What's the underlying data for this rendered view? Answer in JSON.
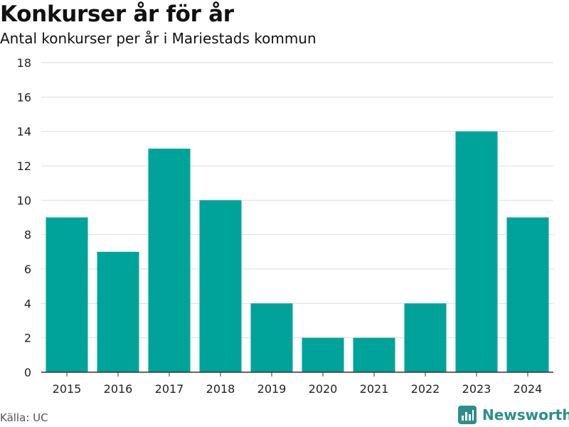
{
  "header": {
    "title": "Konkurser år för år",
    "subtitle": "Antal konkurser per år i Mariestads kommun"
  },
  "footer": {
    "source": "Källa: UC",
    "brand": "Newsworthy"
  },
  "colors": {
    "bar": "#00a39a",
    "grid": "#dddddd",
    "axis": "#333333",
    "brand": "#2b8f89"
  },
  "chart_data": {
    "type": "bar",
    "title": "",
    "xlabel": "",
    "ylabel": "",
    "categories": [
      "2015",
      "2016",
      "2017",
      "2018",
      "2019",
      "2020",
      "2021",
      "2022",
      "2023",
      "2024"
    ],
    "values": [
      9,
      7,
      13,
      10,
      4,
      2,
      2,
      4,
      14,
      9
    ],
    "ylim": [
      0,
      18
    ],
    "yticks": [
      0,
      2,
      4,
      6,
      8,
      10,
      12,
      14,
      16,
      18
    ],
    "grid": true,
    "legend": "none"
  }
}
